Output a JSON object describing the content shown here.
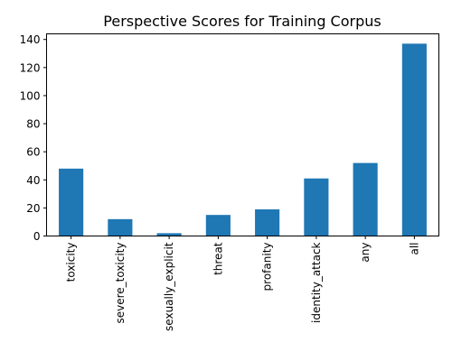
{
  "chart_data": {
    "type": "bar",
    "title": "Perspective Scores for Training Corpus",
    "xlabel": "",
    "ylabel": "",
    "categories": [
      "toxicity",
      "severe_toxicity",
      "sexually_explicit",
      "threat",
      "profanity",
      "identity_attack",
      "any",
      "all"
    ],
    "values": [
      48,
      12,
      2,
      15,
      19,
      41,
      52,
      137
    ],
    "ylim": [
      0,
      144
    ],
    "yticks": [
      "0",
      "20",
      "40",
      "60",
      "80",
      "100",
      "120",
      "140"
    ],
    "grid": false,
    "legend": "none",
    "bar_color": "#1f77b4"
  }
}
